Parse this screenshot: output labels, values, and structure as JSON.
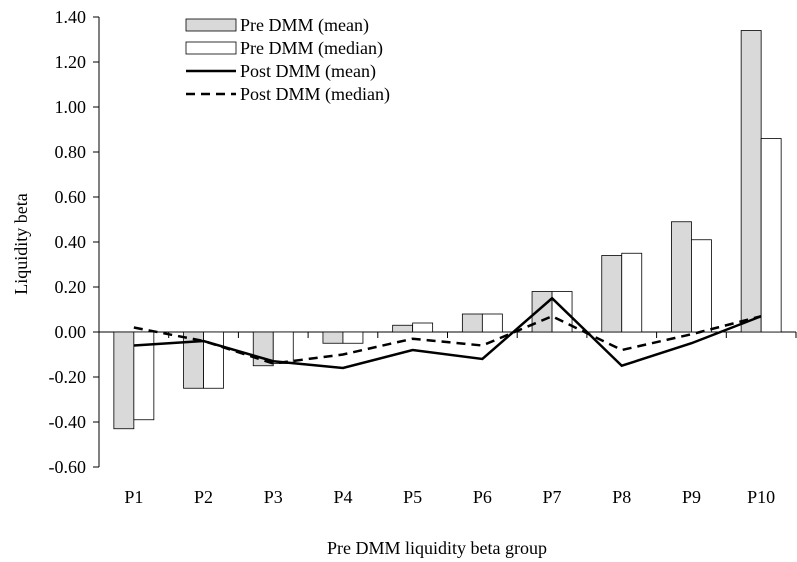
{
  "chart_data": {
    "type": "bar",
    "title": "",
    "xlabel": "Pre DMM liquidity beta group",
    "ylabel": "Liquidity beta",
    "categories": [
      "P1",
      "P2",
      "P3",
      "P4",
      "P5",
      "P6",
      "P7",
      "P8",
      "P9",
      "P10"
    ],
    "ylim": [
      -0.6,
      1.4
    ],
    "yticks": [
      -0.6,
      -0.4,
      -0.2,
      0.0,
      0.2,
      0.4,
      0.6,
      0.8,
      1.0,
      1.2,
      1.4
    ],
    "ytick_labels": [
      "-0.60",
      "-0.40",
      "-0.20",
      "0.00",
      "0.20",
      "0.40",
      "0.60",
      "0.80",
      "1.00",
      "1.20",
      "1.40"
    ],
    "grid": false,
    "legend_position": "top-left",
    "series": [
      {
        "name": "Pre DMM (mean)",
        "type": "bar",
        "color": "#d9d9d9",
        "values": [
          -0.43,
          -0.25,
          -0.15,
          -0.05,
          0.03,
          0.08,
          0.18,
          0.34,
          0.49,
          1.34
        ]
      },
      {
        "name": "Pre DMM (median)",
        "type": "bar",
        "color": "#ffffff",
        "values": [
          -0.39,
          -0.25,
          -0.14,
          -0.05,
          0.04,
          0.08,
          0.18,
          0.35,
          0.41,
          0.86
        ]
      },
      {
        "name": "Post DMM (mean)",
        "type": "line",
        "color": "#000000",
        "style": "solid",
        "values": [
          -0.06,
          -0.04,
          -0.13,
          -0.16,
          -0.08,
          -0.12,
          0.15,
          -0.15,
          -0.05,
          0.07
        ]
      },
      {
        "name": "Post DMM (median)",
        "type": "line",
        "color": "#000000",
        "style": "dashed",
        "values": [
          0.02,
          -0.04,
          -0.14,
          -0.1,
          -0.03,
          -0.06,
          0.07,
          -0.08,
          -0.01,
          0.07
        ]
      }
    ]
  }
}
